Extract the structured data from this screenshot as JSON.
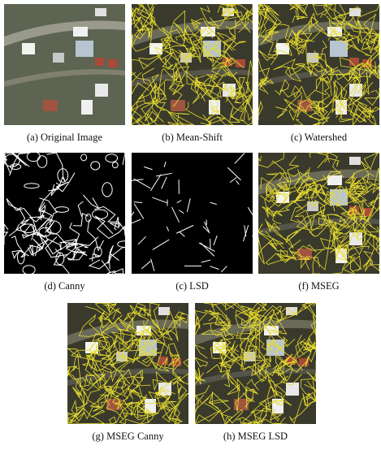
{
  "figure": {
    "panels": [
      {
        "caption": "(a) Original Image"
      },
      {
        "caption": "(b) Mean-Shift"
      },
      {
        "caption": "(c) Watershed"
      },
      {
        "caption": "(d) Canny"
      },
      {
        "caption": "(c) LSD"
      },
      {
        "caption": "(f) MSEG"
      },
      {
        "caption": "(g) MSEG Canny"
      },
      {
        "caption": "(h) MSEG LSD"
      }
    ]
  }
}
